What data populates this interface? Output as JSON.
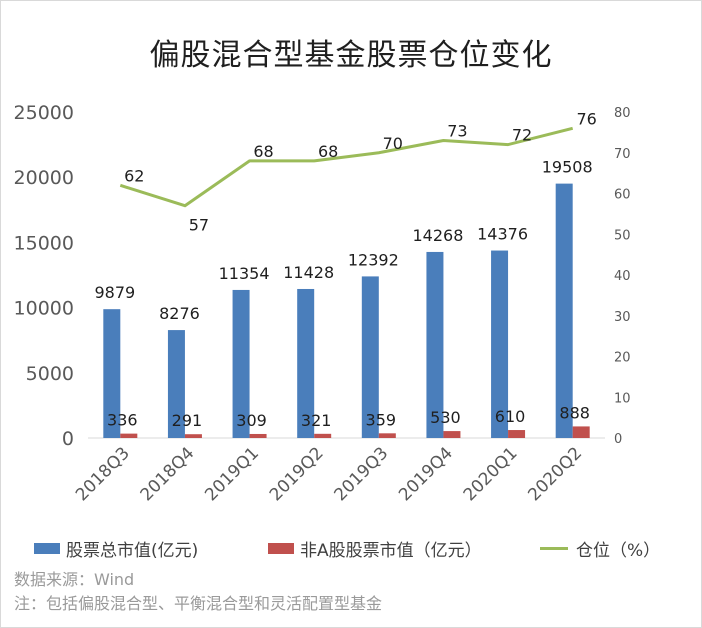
{
  "colors": {
    "bar_total": "#4a7ebb",
    "bar_nona": "#c0504d",
    "line_position": "#9bbb59",
    "axis_text": "#595959"
  },
  "chart_data": {
    "type": "bar",
    "title": "偏股混合型基金股票仓位变化",
    "categories": [
      "2018Q3",
      "2018Q4",
      "2019Q1",
      "2019Q2",
      "2019Q3",
      "2019Q4",
      "2020Q1",
      "2020Q2"
    ],
    "series": [
      {
        "name": "股票总市值(亿元)",
        "type": "bar",
        "axis": "left",
        "values": [
          9879,
          8276,
          11354,
          11428,
          12392,
          14268,
          14376,
          19508
        ]
      },
      {
        "name": "非A股股票市值（亿元）",
        "type": "bar",
        "axis": "left",
        "values": [
          336,
          291,
          309,
          321,
          359,
          530,
          610,
          888
        ]
      },
      {
        "name": "仓位（%）",
        "type": "line",
        "axis": "right",
        "values": [
          62,
          57,
          68,
          68,
          70,
          73,
          72,
          76
        ]
      }
    ],
    "ylim_left": [
      0,
      25000
    ],
    "yticks_left": [
      "0",
      "5000",
      "10000",
      "15000",
      "20000",
      "25000"
    ],
    "ylim_right": [
      0,
      80
    ],
    "yticks_right": [
      "0",
      "10",
      "20",
      "30",
      "40",
      "50",
      "60",
      "70",
      "80"
    ],
    "grid": false,
    "legend_position": "bottom"
  },
  "legend": {
    "total": "股票总市值(亿元)",
    "nona": "非A股股票市值（亿元）",
    "position": "仓位（%）"
  },
  "notes": {
    "source": "数据来源：Wind",
    "remark": "注：包括偏股混合型、平衡混合型和灵活配置型基金"
  }
}
